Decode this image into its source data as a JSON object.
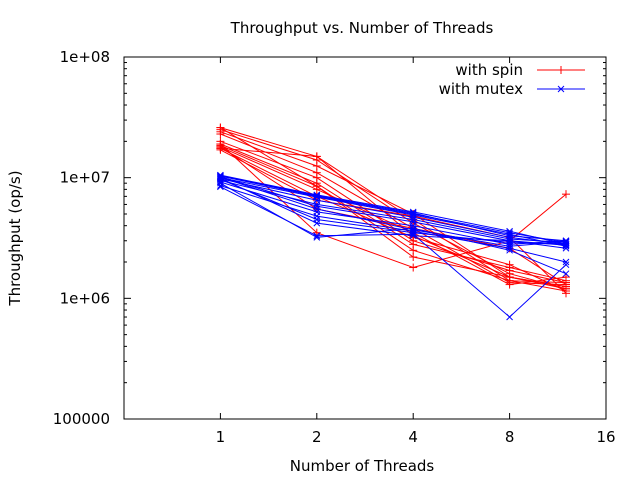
{
  "chart_data": {
    "type": "line",
    "title": "Throughput vs. Number of Threads",
    "xlabel": "Number of Threads",
    "ylabel": "Throughput (op/s)",
    "x_scale": "log2",
    "y_scale": "log10",
    "xlim": [
      0.5,
      16
    ],
    "ylim": [
      100000,
      100000000
    ],
    "x_ticks": [
      1,
      2,
      4,
      8,
      16
    ],
    "x_tick_labels": [
      "1",
      "2",
      "4",
      "8",
      "16"
    ],
    "y_ticks": [
      100000,
      1000000,
      10000000,
      100000000
    ],
    "y_tick_labels": [
      "100000",
      "1e+06",
      "1e+07",
      "1e+08"
    ],
    "x": [
      1,
      2,
      4,
      8,
      12
    ],
    "legend_position": "top-right",
    "groups": [
      {
        "name": "with spin",
        "color": "#ff0000",
        "marker": "plus",
        "runs": [
          [
            26000000,
            15000000,
            4500000,
            1400000,
            1150000
          ],
          [
            25000000,
            14000000,
            4200000,
            1600000,
            1200000
          ],
          [
            24000000,
            12500000,
            5000000,
            1500000,
            1250000
          ],
          [
            23000000,
            11000000,
            3800000,
            1350000,
            1300000
          ],
          [
            20000000,
            10000000,
            3000000,
            1700000,
            1350000
          ],
          [
            19000000,
            9000000,
            2800000,
            1800000,
            1400000
          ],
          [
            18500000,
            8500000,
            2200000,
            1500000,
            1250000
          ],
          [
            18000000,
            8000000,
            3500000,
            1300000,
            1500000
          ],
          [
            17500000,
            7000000,
            3200000,
            1900000,
            1150000
          ],
          [
            17000000,
            6500000,
            4800000,
            3200000,
            1100000
          ],
          [
            18000000,
            5500000,
            3800000,
            2600000,
            1300000
          ],
          [
            19000000,
            3500000,
            1800000,
            3000000,
            7300000
          ],
          [
            17500000,
            15000000,
            3300000,
            1500000,
            1200000
          ],
          [
            26000000,
            8500000,
            2500000,
            1400000,
            1350000
          ]
        ]
      },
      {
        "name": "with mutex",
        "color": "#0000ff",
        "marker": "cross",
        "runs": [
          [
            10500000,
            7200000,
            5200000,
            3600000,
            2800000
          ],
          [
            10300000,
            7000000,
            5000000,
            3500000,
            2900000
          ],
          [
            10000000,
            6900000,
            4900000,
            3400000,
            2700000
          ],
          [
            10400000,
            7100000,
            5100000,
            3300000,
            3000000
          ],
          [
            9800000,
            6500000,
            4700000,
            3200000,
            2800000
          ],
          [
            9500000,
            6000000,
            4500000,
            3100000,
            2900000
          ],
          [
            10200000,
            5800000,
            4300000,
            3000000,
            2600000
          ],
          [
            9200000,
            5200000,
            4000000,
            2800000,
            3000000
          ],
          [
            8600000,
            4800000,
            3600000,
            2600000,
            2000000
          ],
          [
            8400000,
            3300000,
            3400000,
            700000,
            1900000
          ],
          [
            9000000,
            3200000,
            3800000,
            2500000,
            1600000
          ],
          [
            9700000,
            4500000,
            3500000,
            2900000,
            2800000
          ],
          [
            10100000,
            5500000,
            3700000,
            2700000,
            2950000
          ],
          [
            9900000,
            4200000,
            3300000,
            3000000,
            2750000
          ]
        ]
      }
    ]
  }
}
